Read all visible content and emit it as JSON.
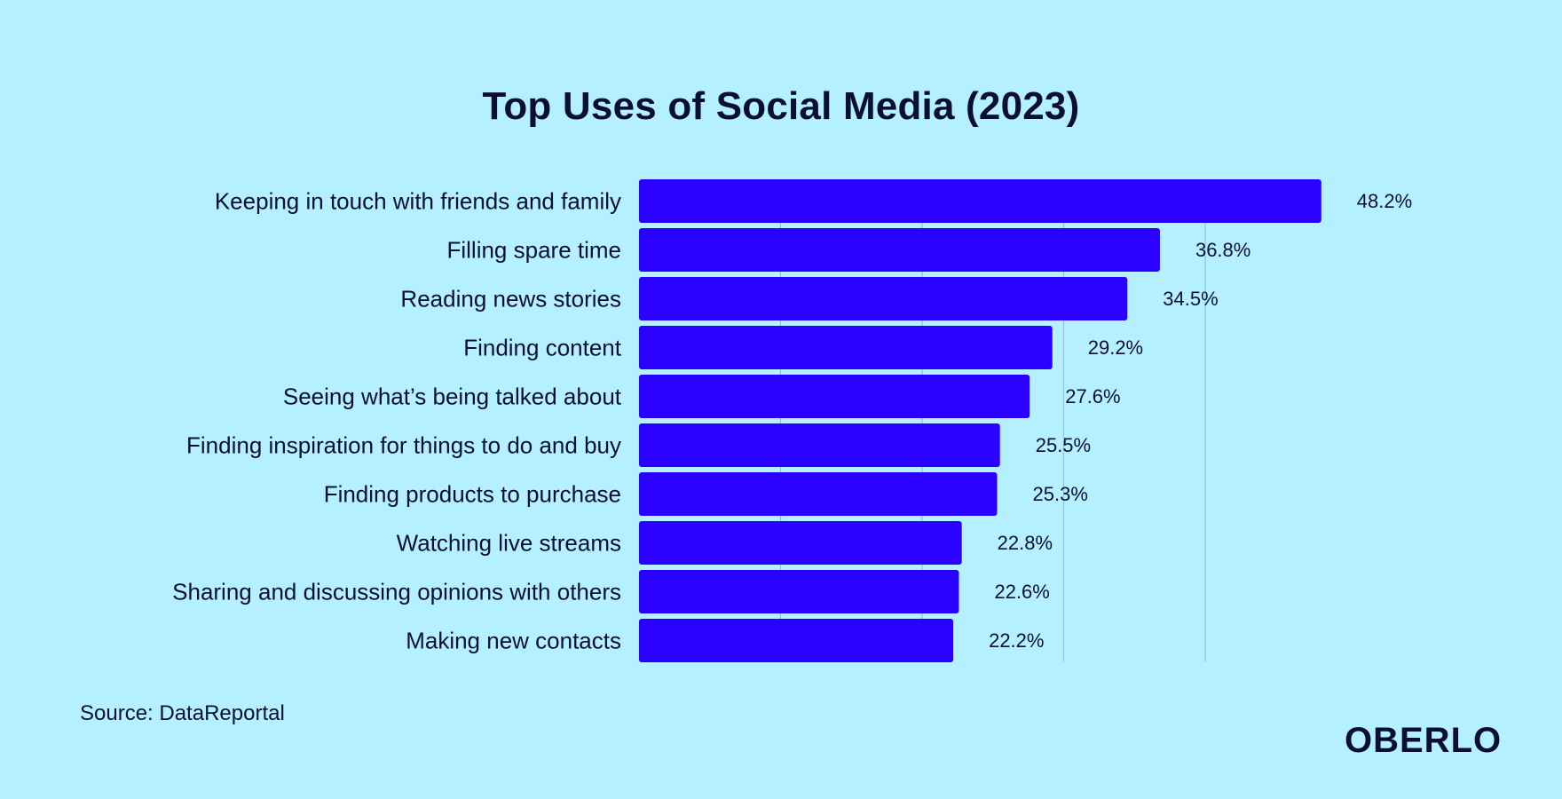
{
  "chart_data": {
    "type": "bar",
    "orientation": "horizontal",
    "title": "Top Uses of Social Media (2023)",
    "categories": [
      "Keeping in touch with friends and family",
      "Filling spare time",
      "Reading news stories",
      "Finding content",
      "Seeing what’s being talked about",
      "Finding inspiration for things to do and buy",
      "Finding products to purchase",
      "Watching live streams",
      "Sharing and discussing opinions with others",
      "Making new contacts"
    ],
    "values": [
      48.2,
      36.8,
      34.5,
      29.2,
      27.6,
      25.5,
      25.3,
      22.8,
      22.6,
      22.2
    ],
    "value_labels": [
      "48.2%",
      "36.8%",
      "34.5%",
      "29.2%",
      "27.6%",
      "25.5%",
      "25.3%",
      "22.8%",
      "22.6%",
      "22.2%"
    ],
    "xlim": [
      0,
      60
    ],
    "gridlines": [
      10,
      20,
      30,
      40
    ],
    "xlabel": "",
    "ylabel": "",
    "legend": "none"
  },
  "colors": {
    "background": "#b5f0ff",
    "bar": "#2a00ff",
    "grid": "#8fc3d8",
    "text": "#0b1033"
  },
  "footer": {
    "source": "Source: DataReportal",
    "brand": "OBERLO"
  }
}
